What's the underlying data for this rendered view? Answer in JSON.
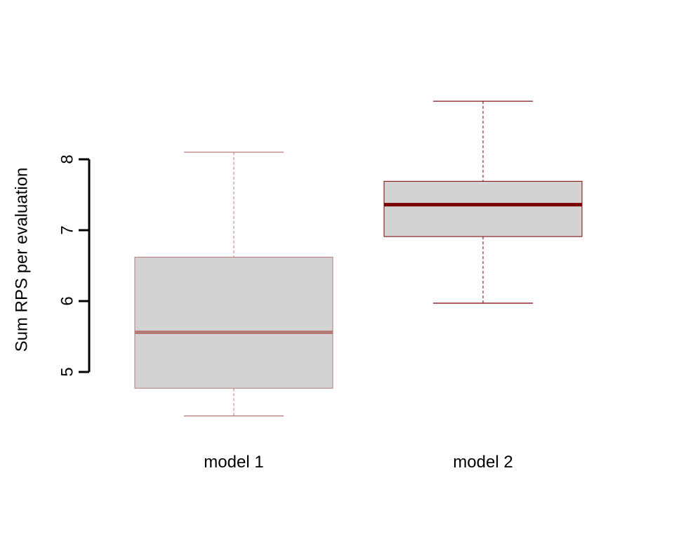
{
  "chart_data": {
    "type": "boxplot",
    "title": "",
    "xlabel": "",
    "ylabel": "Sum RPS per evaluation",
    "ylim": [
      4.3,
      9.0
    ],
    "y_ticks": [
      "5",
      "6",
      "7",
      "8"
    ],
    "y_tick_values": [
      5,
      6,
      7,
      8
    ],
    "grid": false,
    "categories": [
      "model 1",
      "model 2"
    ],
    "boxes": [
      {
        "name": "model 1",
        "whisker_low": 4.38,
        "q1": 4.77,
        "median": 5.56,
        "q3": 6.62,
        "whisker_high": 8.1,
        "line_color": "#b47a7a",
        "median_color": "#b47a7a",
        "fill_color": "#d3d3d3"
      },
      {
        "name": "model 2",
        "whisker_low": 5.97,
        "q1": 6.91,
        "median": 7.36,
        "q3": 7.69,
        "whisker_high": 8.82,
        "line_color": "#7a0000",
        "median_color": "#7a0000",
        "fill_color": "#d3d3d3"
      }
    ]
  }
}
